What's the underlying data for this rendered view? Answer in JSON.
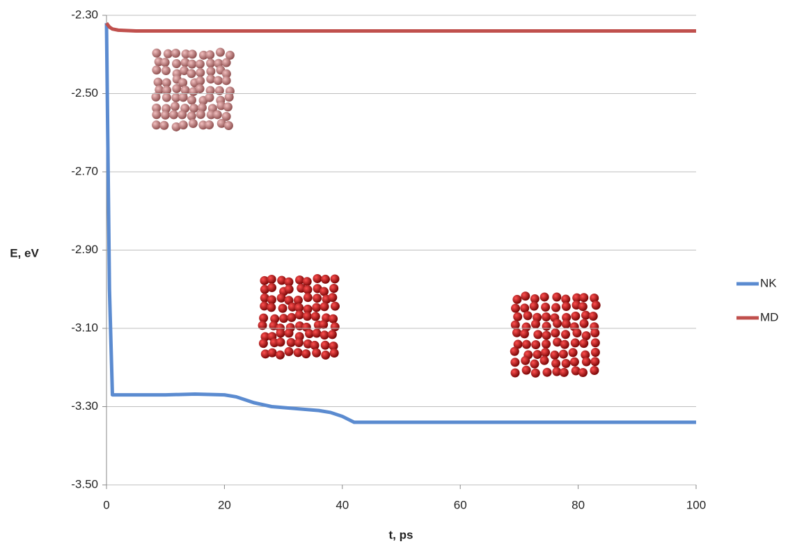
{
  "chart_data": {
    "type": "line",
    "x_label": "t, ps",
    "y_label": "E, eV",
    "x": [
      0,
      0.5,
      1,
      2,
      5,
      10,
      15,
      20,
      22,
      25,
      28,
      32,
      36,
      38,
      40,
      42,
      45,
      50,
      60,
      70,
      80,
      90,
      100
    ],
    "series": [
      {
        "name": "NK",
        "color": "#5b8bd0",
        "values": [
          -2.32,
          -3.0,
          -3.27,
          -3.27,
          -3.27,
          -3.27,
          -3.268,
          -3.27,
          -3.275,
          -3.29,
          -3.3,
          -3.305,
          -3.31,
          -3.315,
          -3.325,
          -3.34,
          -3.34,
          -3.34,
          -3.34,
          -3.34,
          -3.34,
          -3.34,
          -3.34
        ]
      },
      {
        "name": "MD",
        "color": "#c0504d",
        "values": [
          -2.32,
          -2.33,
          -2.335,
          -2.338,
          -2.34,
          -2.34,
          -2.34,
          -2.34,
          -2.34,
          -2.34,
          -2.34,
          -2.34,
          -2.34,
          -2.34,
          -2.34,
          -2.34,
          -2.34,
          -2.34,
          -2.34,
          -2.34,
          -2.34,
          -2.34,
          -2.34
        ]
      }
    ],
    "xlim": [
      0,
      100
    ],
    "xticks": [
      0,
      20,
      40,
      60,
      80,
      100
    ],
    "ylim": [
      -3.5,
      -2.3
    ],
    "yticks": [
      {
        "value": -3.5,
        "label": "-3.50"
      },
      {
        "value": -3.3,
        "label": "-3.30"
      },
      {
        "value": -3.1,
        "label": "-3.10"
      },
      {
        "value": -2.9,
        "label": "-2.90"
      },
      {
        "value": -2.7,
        "label": "-2.70"
      },
      {
        "value": -2.5,
        "label": "-2.50"
      },
      {
        "value": -2.3,
        "label": "-2.30"
      }
    ],
    "grid": true,
    "legend": "right"
  }
}
